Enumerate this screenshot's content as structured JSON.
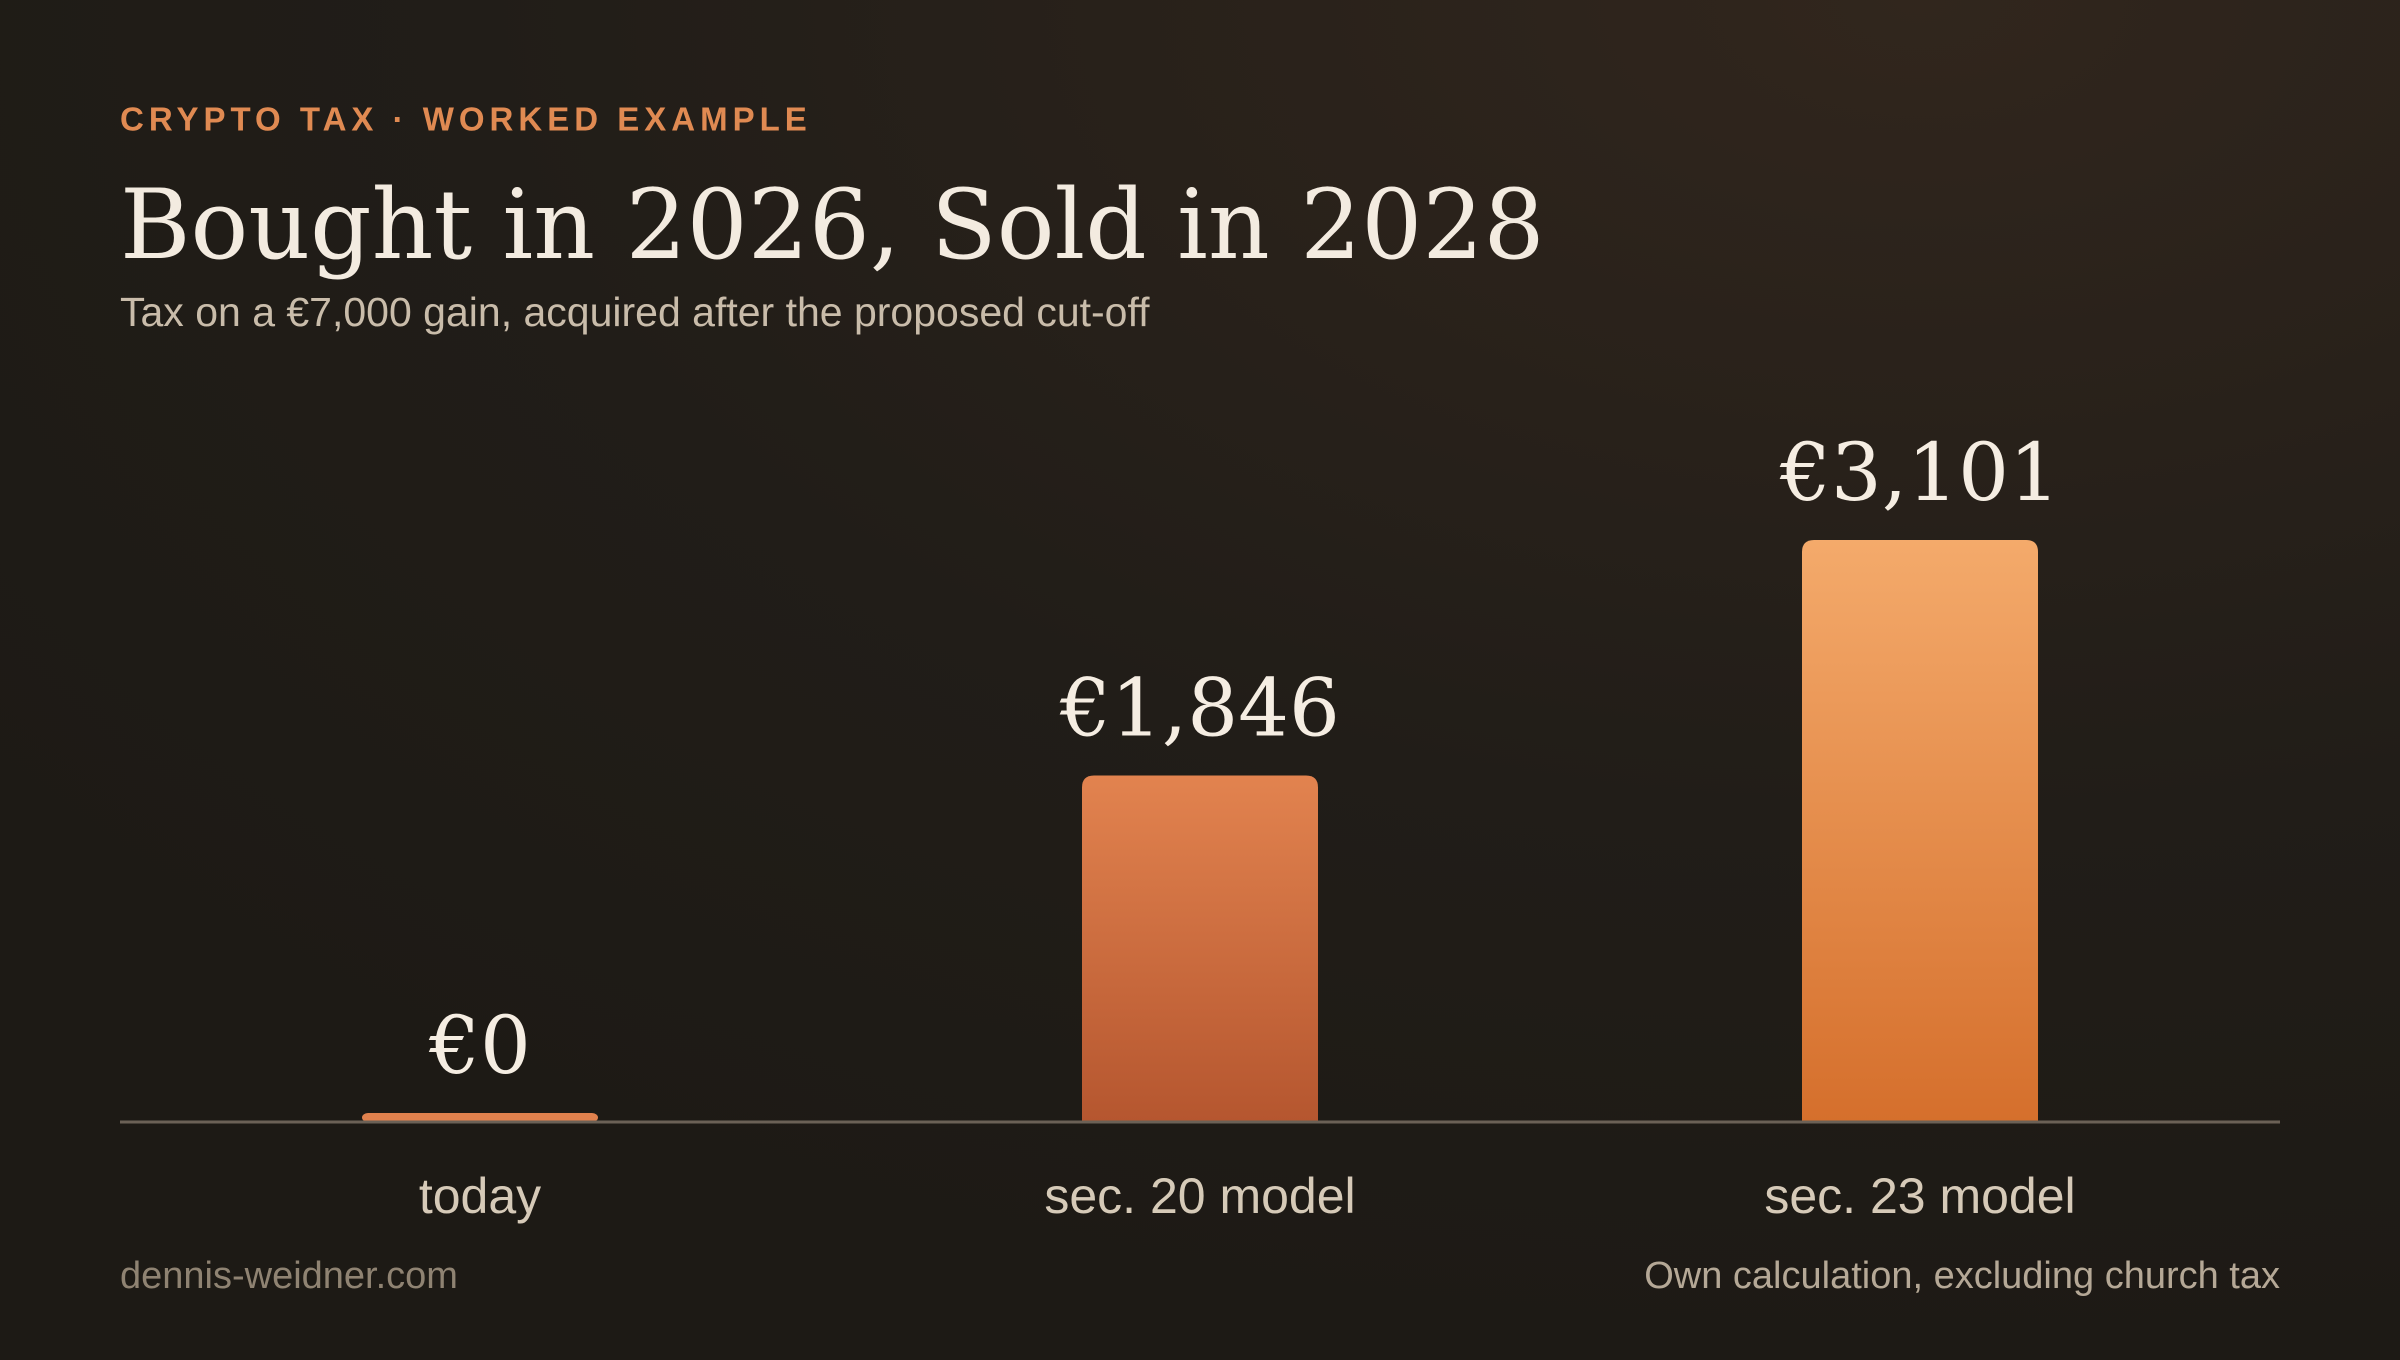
{
  "chart_data": {
    "type": "bar",
    "eyebrow": "CRYPTO TAX · WORKED EXAMPLE",
    "title": "Bought in 2026, Sold in 2028",
    "subtitle": "Tax on a €7,000 gain, acquired after the proposed cut-off",
    "categories": [
      "today",
      "sec. 20 model",
      "sec. 23 model"
    ],
    "values": [
      0,
      1846,
      3101
    ],
    "value_labels": [
      "€0",
      "€1,846",
      "€3,101"
    ],
    "colors": [
      [
        "#e0814d",
        "#c86a3e"
      ],
      [
        "#e2834f",
        "#b5562f"
      ],
      [
        "#f4aa6b",
        "#d56f2c"
      ]
    ],
    "source": "dennis-weidner.com",
    "note": "Own calculation, excluding church tax"
  }
}
